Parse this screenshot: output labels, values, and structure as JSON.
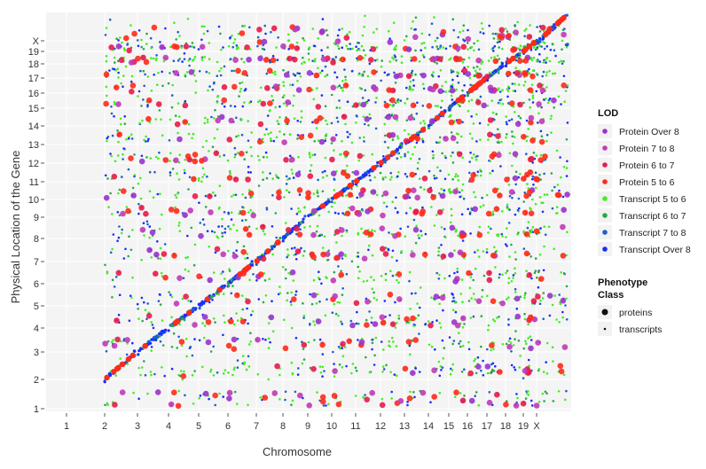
{
  "chart_data": {
    "type": "scatter",
    "title": "",
    "xlabel": "Chromosome",
    "ylabel": "Physical Location of the Gene",
    "categories": [
      "1",
      "2",
      "3",
      "4",
      "5",
      "6",
      "7",
      "8",
      "9",
      "10",
      "11",
      "12",
      "13",
      "14",
      "15",
      "16",
      "17",
      "18",
      "19",
      "X"
    ],
    "y_categories": [
      "1",
      "2",
      "3",
      "4",
      "5",
      "6",
      "7",
      "8",
      "9",
      "10",
      "11",
      "12",
      "13",
      "14",
      "15",
      "16",
      "17",
      "18",
      "19",
      "X"
    ],
    "grid": true,
    "legend_position": "right",
    "legend": {
      "lod_title": "LOD",
      "lod_entries": [
        {
          "label": "Protein Over 8",
          "color": "#9a32cd"
        },
        {
          "label": "Protein 7 to 8",
          "color": "#c03ab8"
        },
        {
          "label": "Protein 6 to 7",
          "color": "#e8194a"
        },
        {
          "label": "Protein 5 to 6",
          "color": "#ff2a1a"
        },
        {
          "label": "Transcript 5 to 6",
          "color": "#44ee22"
        },
        {
          "label": "Transcript 6 to 7",
          "color": "#2aa84a"
        },
        {
          "label": "Transcript 7 to 8",
          "color": "#1f5fc8"
        },
        {
          "label": "Transcript Over 8",
          "color": "#1a2cff"
        }
      ],
      "class_title": "Phenotype Class",
      "class_entries": [
        {
          "label": "proteins",
          "shape": "large-dot"
        },
        {
          "label": "transcripts",
          "shape": "small-dot"
        }
      ]
    },
    "series": [
      {
        "name": "proteins",
        "pattern": "trans hotspots plus cis diagonal",
        "approx_points": 650,
        "lod_classes": [
          "Protein Over 8",
          "Protein 7 to 8",
          "Protein 6 to 7",
          "Protein 5 to 6"
        ]
      },
      {
        "name": "transcripts",
        "pattern": "dense cis diagonal plus dispersed trans",
        "approx_points": 9000,
        "lod_classes": [
          "Transcript 5 to 6",
          "Transcript 6 to 7",
          "Transcript 7 to 8",
          "Transcript Over 8"
        ]
      }
    ],
    "diagonal": {
      "from": [
        "1",
        "1"
      ],
      "to": [
        "X",
        "X"
      ]
    }
  }
}
